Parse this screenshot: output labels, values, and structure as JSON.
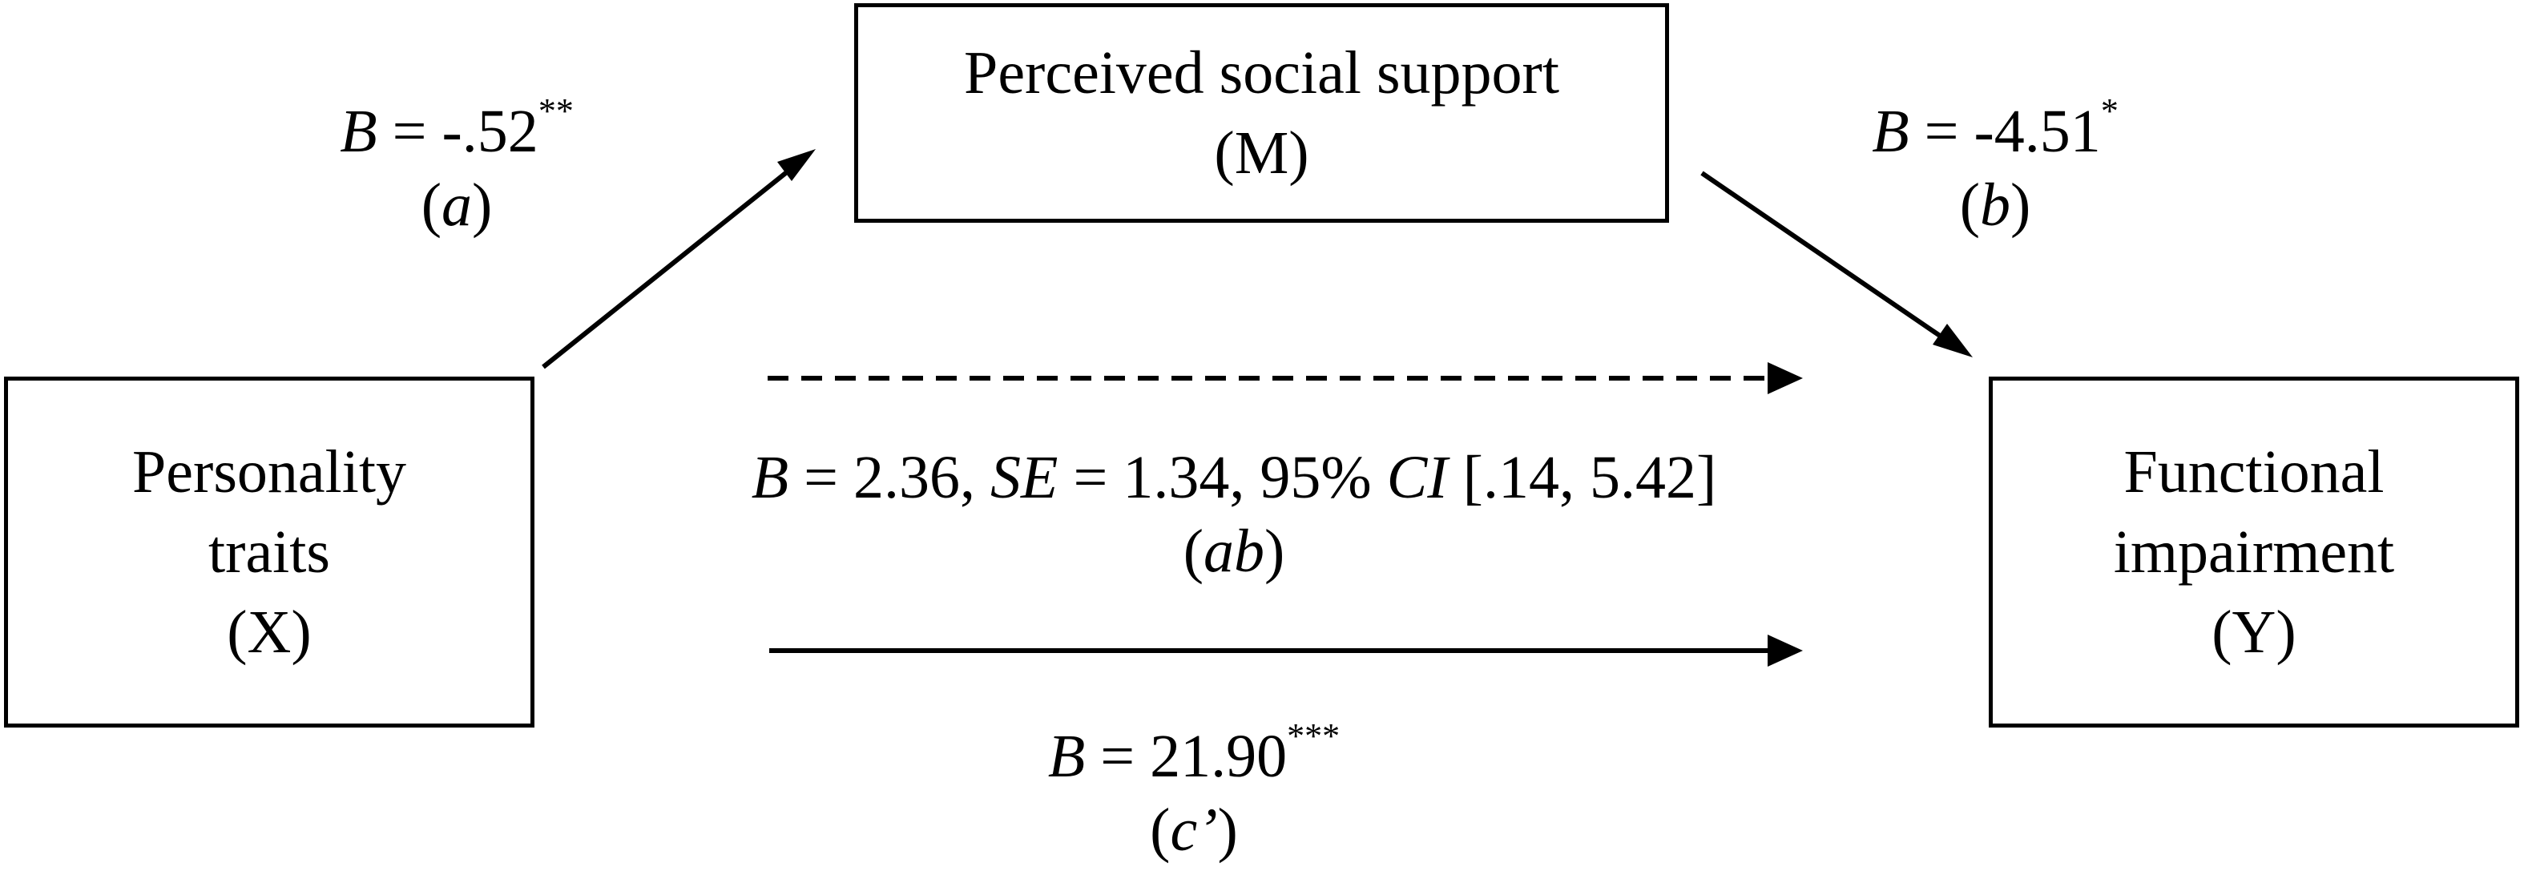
{
  "diagram": {
    "nodes": {
      "x": {
        "lines": [
          "Personality",
          "traits",
          "(X)"
        ]
      },
      "m": {
        "lines": [
          "Perceived social support",
          "(M)"
        ]
      },
      "y": {
        "lines": [
          "Functional",
          "impairment",
          "(Y)"
        ]
      }
    },
    "paths": {
      "a": {
        "coef_label": "B",
        "equals": " = ",
        "value": "-.52",
        "sig": "**",
        "path_open": "(",
        "path_name": "a",
        "path_close": ")"
      },
      "b": {
        "coef_label": "B",
        "equals": " = ",
        "value": "-4.51",
        "sig": "*",
        "path_open": "(",
        "path_name": "b",
        "path_close": ")"
      },
      "ab": {
        "coef_label": "B",
        "text1": " = 2.36, ",
        "se_label": "SE",
        "text2": " = 1.34, 95% ",
        "ci_label": "CI",
        "text3": " [.14, 5.42]",
        "path_open": "(",
        "path_name": "ab",
        "path_close": ")",
        "style": "dashed"
      },
      "c_prime": {
        "coef_label": "B",
        "equals": " = ",
        "value": "21.90",
        "sig": "***",
        "path_open": "(",
        "path_name": "c’",
        "path_close": ")",
        "style": "solid"
      }
    },
    "colors": {
      "line": "#000000",
      "background": "#ffffff",
      "text": "#000000"
    }
  }
}
